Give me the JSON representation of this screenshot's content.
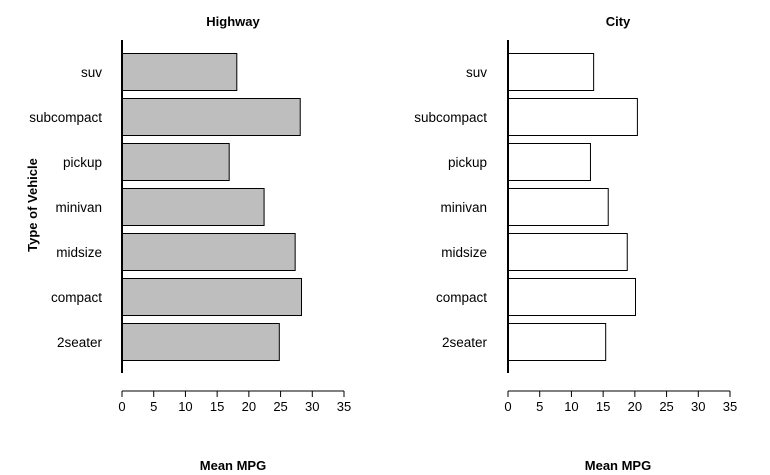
{
  "chart_data": [
    {
      "type": "bar",
      "orientation": "horizontal",
      "title": "Highway",
      "xlabel": "Mean MPG",
      "ylabel": "Type of Vehicle",
      "categories": [
        "2seater",
        "compact",
        "midsize",
        "minivan",
        "pickup",
        "subcompact",
        "suv"
      ],
      "values": [
        24.8,
        28.3,
        27.3,
        22.4,
        16.9,
        28.1,
        18.1
      ],
      "xlim": [
        0,
        35
      ],
      "xticks": [
        "0",
        "5",
        "10",
        "15",
        "20",
        "25",
        "30",
        "35"
      ],
      "bar_color": "#bebebe",
      "grid": false
    },
    {
      "type": "bar",
      "orientation": "horizontal",
      "title": "City",
      "xlabel": "Mean MPG",
      "ylabel": "",
      "categories": [
        "2seater",
        "compact",
        "midsize",
        "minivan",
        "pickup",
        "subcompact",
        "suv"
      ],
      "values": [
        15.4,
        20.1,
        18.8,
        15.8,
        13.0,
        20.4,
        13.5
      ],
      "xlim": [
        0,
        35
      ],
      "xticks": [
        "0",
        "5",
        "10",
        "15",
        "20",
        "25",
        "30",
        "35"
      ],
      "bar_color": "#ffffff",
      "grid": false
    }
  ]
}
